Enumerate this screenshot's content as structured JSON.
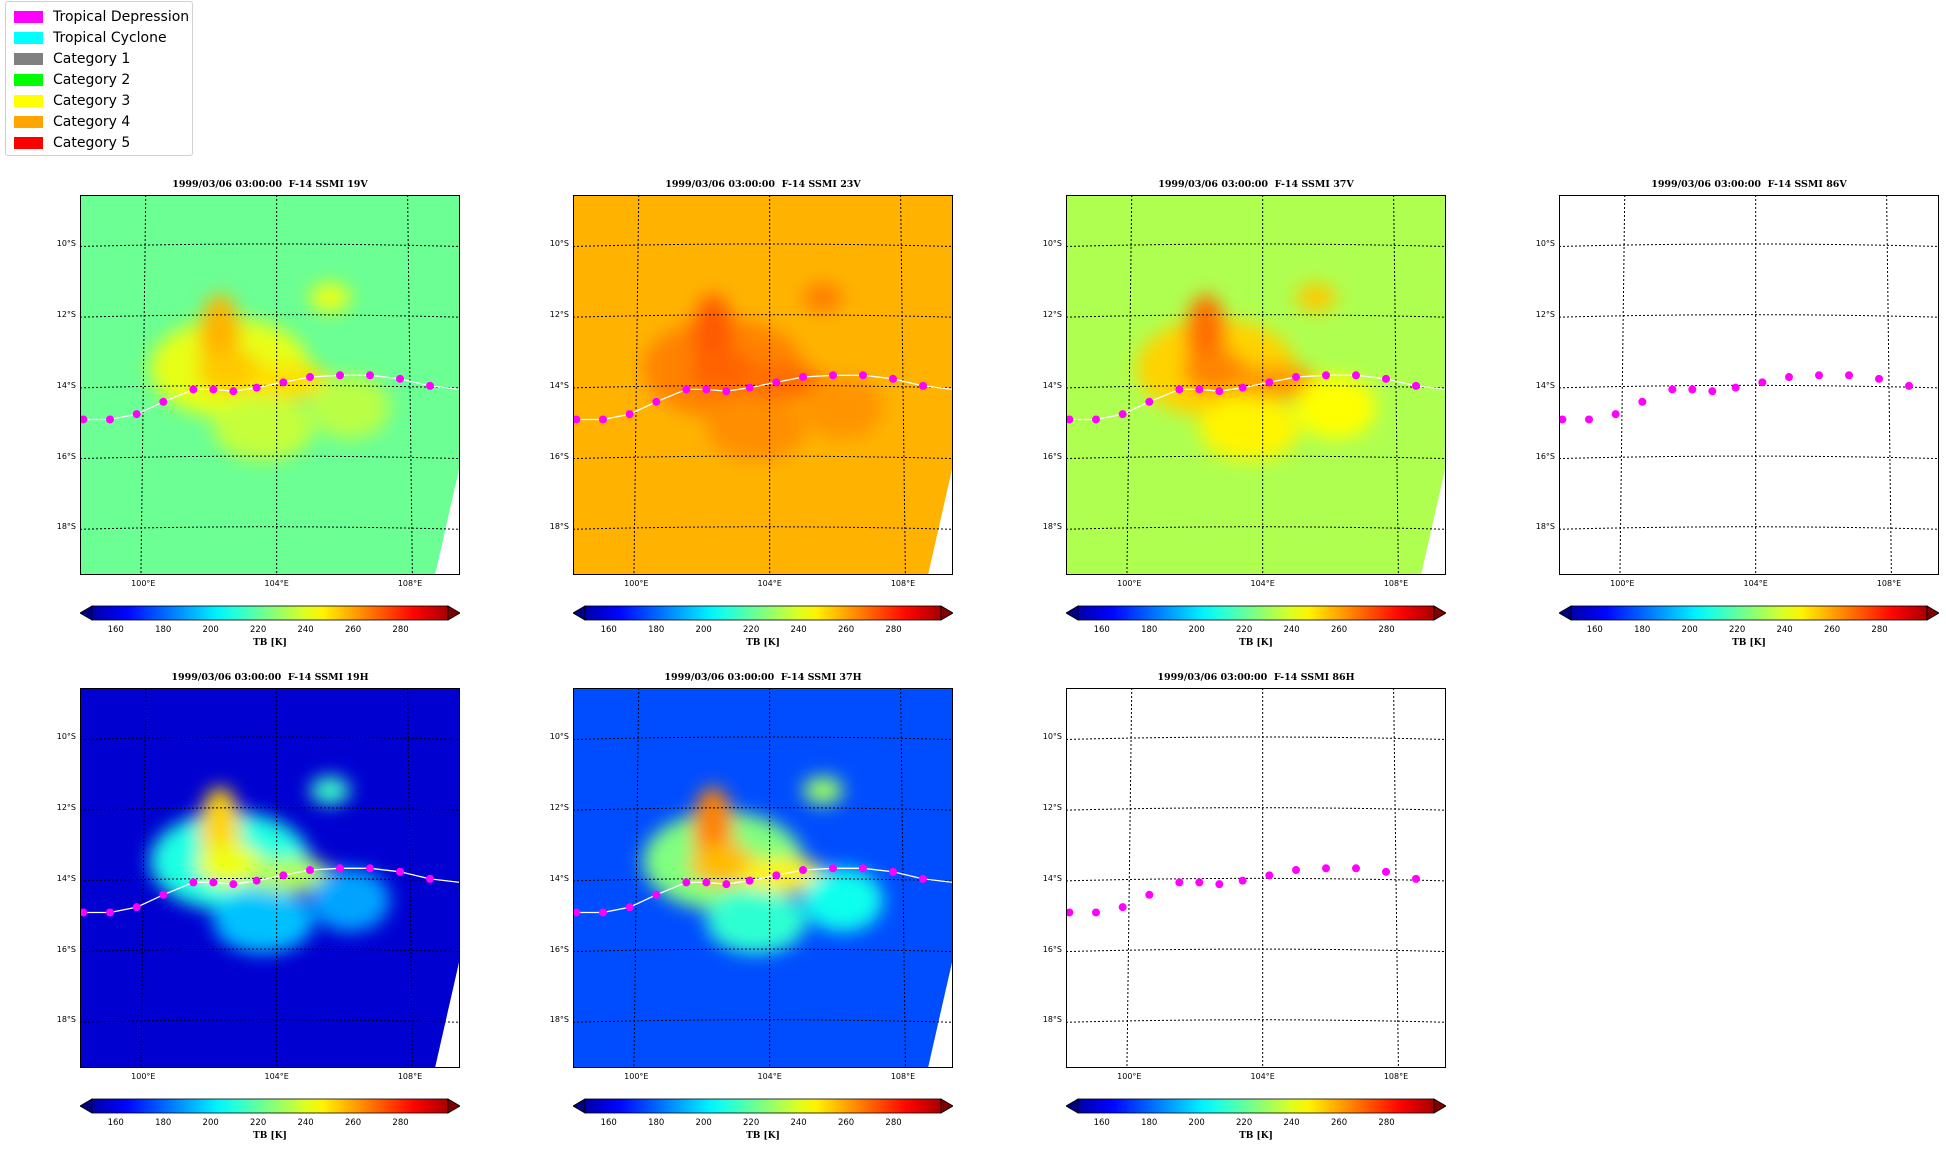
{
  "legend": {
    "items": [
      {
        "label": "Tropical Depression",
        "color": "#ff00ff"
      },
      {
        "label": "Tropical Cyclone",
        "color": "#00ffff"
      },
      {
        "label": "Category 1",
        "color": "#808080"
      },
      {
        "label": "Category 2",
        "color": "#00ff00"
      },
      {
        "label": "Category 3",
        "color": "#ffff00"
      },
      {
        "label": "Category 4",
        "color": "#ffa500"
      },
      {
        "label": "Category 5",
        "color": "#ff0000"
      }
    ]
  },
  "lat_labels": [
    "10°S",
    "12°S",
    "14°S",
    "16°S",
    "18°S"
  ],
  "lon_labels": [
    "100°E",
    "104°E",
    "108°E"
  ],
  "colorbar": {
    "ticks": [
      "160",
      "180",
      "200",
      "220",
      "240",
      "260",
      "280"
    ],
    "label": "TB [K]",
    "range": [
      150,
      300
    ]
  },
  "track": {
    "lons": [
      98.2,
      99.0,
      99.8,
      100.6,
      101.5,
      102.1,
      102.7,
      103.4,
      104.2,
      105.0,
      105.9,
      106.8,
      107.7,
      108.6
    ],
    "lats": [
      -14.95,
      -14.95,
      -14.8,
      -14.45,
      -14.1,
      -14.1,
      -14.15,
      -14.05,
      -13.9,
      -13.75,
      -13.7,
      -13.7,
      -13.8,
      -14.0
    ],
    "category_color": "#ff00ff",
    "line_color": "#ffffff"
  },
  "panels": [
    {
      "title": "1999/03/06 03:00:00  F-14 SSMI 19V",
      "base": 222,
      "peak": 255
    },
    {
      "title": "1999/03/06 03:00:00  F-14 SSMI 23V",
      "base": 255,
      "peak": 268
    },
    {
      "title": "1999/03/06 03:00:00  F-14 SSMI 37V",
      "base": 232,
      "peak": 265
    },
    {
      "title": "1999/03/06 03:00:00  F-14 SSMI 86V",
      "base": null,
      "peak": null
    },
    {
      "title": "1999/03/06 03:00:00  F-14 SSMI 19H",
      "base": 162,
      "peak": 250
    },
    {
      "title": "1999/03/06 03:00:00  F-14 SSMI 37H",
      "base": 180,
      "peak": 262
    },
    {
      "title": "1999/03/06 03:00:00  F-14 SSMI 86H",
      "base": null,
      "peak": null
    }
  ]
}
